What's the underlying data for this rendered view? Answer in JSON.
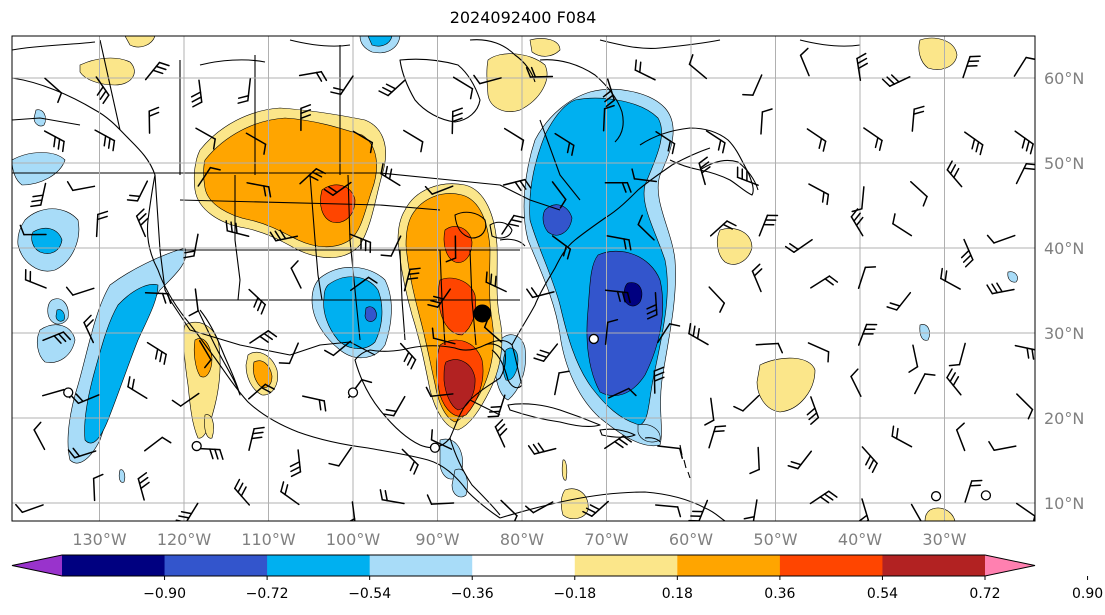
{
  "title": "2024092400 F084",
  "lon_ticks": [
    {
      "lon": -130,
      "label": "130°W"
    },
    {
      "lon": -120,
      "label": "120°W"
    },
    {
      "lon": -110,
      "label": "110°W"
    },
    {
      "lon": -100,
      "label": "100°W"
    },
    {
      "lon": -90,
      "label": "90°W"
    },
    {
      "lon": -80,
      "label": "80°W"
    },
    {
      "lon": -70,
      "label": "70°W"
    },
    {
      "lon": -60,
      "label": "60°W"
    },
    {
      "lon": -50,
      "label": "50°W"
    },
    {
      "lon": -40,
      "label": "40°W"
    },
    {
      "lon": -30,
      "label": "30°W"
    }
  ],
  "lat_ticks": [
    {
      "lat": 60,
      "label": "60°N"
    },
    {
      "lat": 50,
      "label": "50°N"
    },
    {
      "lat": 40,
      "label": "40°N"
    },
    {
      "lat": 30,
      "label": "30°N"
    },
    {
      "lat": 20,
      "label": "20°N"
    },
    {
      "lat": 10,
      "label": "10°N"
    }
  ],
  "colorbar": {
    "tick_labels": [
      "−0.90",
      "−0.72",
      "−0.54",
      "−0.36",
      "−0.18",
      "0.18",
      "0.36",
      "0.54",
      "0.72",
      "0.90"
    ],
    "colors": [
      "#9933cc",
      "#000080",
      "#3355cc",
      "#00b0f0",
      "#a8dcf8",
      "#ffffff",
      "#fbe68a",
      "#ffa500",
      "#ff4500",
      "#b22222",
      "#ff80b0"
    ]
  },
  "colors": {
    "neg_light": "#a8dcf8",
    "neg_mid": "#00b0f0",
    "neg_strong": "#3355cc",
    "neg_max": "#000080",
    "pos_light": "#fbe68a",
    "pos_mid": "#ffa500",
    "pos_strong": "#ff4500",
    "pos_max": "#b22222",
    "grid": "#b0b0b0"
  },
  "storm_marker": {
    "lon": -84.7,
    "lat": 32.3
  },
  "circles": [
    {
      "lon": -133.7,
      "lat": 23.0
    },
    {
      "lon": -118.5,
      "lat": 16.7
    },
    {
      "lon": -100.0,
      "lat": 23.0
    },
    {
      "lon": -90.3,
      "lat": 16.5
    },
    {
      "lon": -71.5,
      "lat": 29.3
    },
    {
      "lon": -31.0,
      "lat": 10.8
    },
    {
      "lon": -25.1,
      "lat": 10.9
    }
  ]
}
